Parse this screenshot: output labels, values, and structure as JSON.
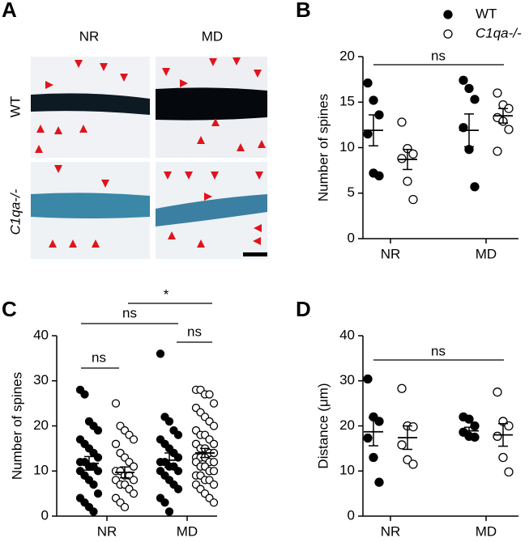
{
  "panel_a": {
    "label": "A",
    "columns": [
      "NR",
      "MD"
    ],
    "rows": [
      "WT",
      "C1qa-/-"
    ]
  },
  "chart_data": [
    {
      "type": "dot",
      "panel": "B",
      "ylabel": "Number of spines",
      "categories": [
        "NR",
        "MD"
      ],
      "ylim": [
        0,
        20
      ],
      "yticks": [
        0,
        5,
        10,
        15,
        20
      ],
      "legend": true,
      "annotations": [
        "ns"
      ],
      "series": [
        {
          "name": "WT",
          "color": "#000000",
          "filled": true,
          "values": [
            [
              17.1,
              15.2,
              13.6,
              11.5,
              7.2,
              6.9
            ],
            [
              17.4,
              16.5,
              15.3,
              12.2,
              9.8,
              5.7
            ]
          ],
          "mean": [
            11.9,
            11.9
          ],
          "sem": [
            1.7,
            1.8
          ]
        },
        {
          "name": "C1qa-/-",
          "color": "#000000",
          "filled": false,
          "values": [
            [
              12.8,
              9.9,
              9.3,
              8.8,
              6.3,
              4.3
            ],
            [
              16.0,
              14.7,
              14.3,
              13.3,
              12.9,
              12.0,
              9.6
            ]
          ],
          "mean": [
            8.7,
            13.5
          ],
          "sem": [
            1.1,
            0.8
          ]
        }
      ]
    },
    {
      "type": "dot",
      "panel": "C",
      "ylabel": "Number of spines",
      "categories": [
        "NR",
        "MD"
      ],
      "ylim": [
        0,
        40
      ],
      "yticks": [
        0,
        10,
        20,
        30,
        40
      ],
      "legend": false,
      "annotations": [
        "ns",
        "ns",
        "*",
        "ns"
      ],
      "series": [
        {
          "name": "WT",
          "color": "#000000",
          "filled": true,
          "values": [
            [
              28,
              27,
              21,
              20,
              19,
              17,
              16,
              15,
              14,
              13,
              12,
              12,
              11,
              11,
              10,
              10,
              9,
              8,
              7,
              5,
              4,
              3,
              2,
              1
            ],
            [
              36,
              22,
              21,
              19,
              18,
              17,
              16,
              15,
              14,
              13,
              12,
              12,
              11,
              11,
              10,
              10,
              9,
              8,
              7,
              6,
              4,
              3,
              1
            ]
          ],
          "mean": [
            11.7,
            12.4
          ],
          "sem": [
            1.5,
            1.6
          ]
        },
        {
          "name": "C1qa-/-",
          "color": "#000000",
          "filled": false,
          "values": [
            [
              25,
              20,
              19,
              18,
              17,
              16,
              14,
              13,
              12,
              11,
              10,
              10,
              9,
              9,
              8,
              8,
              7,
              7,
              6,
              5,
              4,
              3,
              2
            ],
            [
              28,
              28,
              27,
              27,
              25,
              24,
              23,
              22,
              21,
              20,
              19,
              18,
              18,
              17,
              16,
              16,
              15,
              15,
              14,
              14,
              13,
              13,
              13,
              12,
              12,
              12,
              11,
              11,
              10,
              10,
              9,
              9,
              8,
              8,
              7,
              7,
              6,
              5,
              4,
              3
            ]
          ],
          "mean": [
            9.7,
            14.0
          ],
          "sem": [
            1.2,
            1.0
          ]
        }
      ]
    },
    {
      "type": "dot",
      "panel": "D",
      "ylabel": "Distance (μm)",
      "categories": [
        "NR",
        "MD"
      ],
      "ylim": [
        0,
        40
      ],
      "yticks": [
        0,
        10,
        20,
        30,
        40
      ],
      "legend": false,
      "annotations": [
        "ns"
      ],
      "series": [
        {
          "name": "WT",
          "color": "#000000",
          "filled": true,
          "values": [
            [
              30.4,
              22,
              21,
              17.3,
              13,
              7.5
            ],
            [
              22,
              21.5,
              20,
              18.6,
              17.7,
              17.5
            ]
          ],
          "mean": [
            18.7,
            18.9
          ],
          "sem": [
            3.1,
            0.8
          ]
        },
        {
          "name": "C1qa-/-",
          "color": "#000000",
          "filled": false,
          "values": [
            [
              28.3,
              20,
              19.8,
              15.8,
              12.5,
              11.5
            ],
            [
              27.5,
              21,
              20,
              17.7,
              13,
              9.8
            ]
          ],
          "mean": [
            17.4,
            18.0
          ],
          "sem": [
            2.6,
            2.5
          ]
        }
      ]
    }
  ]
}
